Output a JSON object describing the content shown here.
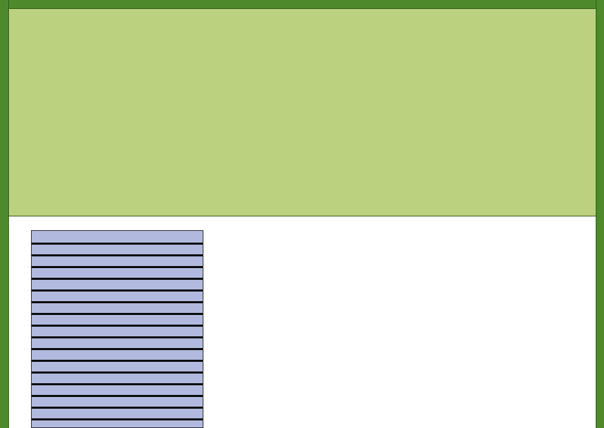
{
  "colors": {
    "frame": "#4e8a2c",
    "header_panel": "#bcd17f",
    "content_panel": "#ffffff",
    "list_row": "#b1bade",
    "row_separator": "#0b0b0b"
  },
  "list": {
    "items": [
      {
        "label": ""
      },
      {
        "label": ""
      },
      {
        "label": ""
      },
      {
        "label": ""
      },
      {
        "label": ""
      },
      {
        "label": ""
      },
      {
        "label": ""
      },
      {
        "label": ""
      },
      {
        "label": ""
      },
      {
        "label": ""
      },
      {
        "label": ""
      },
      {
        "label": ""
      },
      {
        "label": ""
      },
      {
        "label": ""
      },
      {
        "label": ""
      },
      {
        "label": ""
      },
      {
        "label": ""
      }
    ]
  }
}
